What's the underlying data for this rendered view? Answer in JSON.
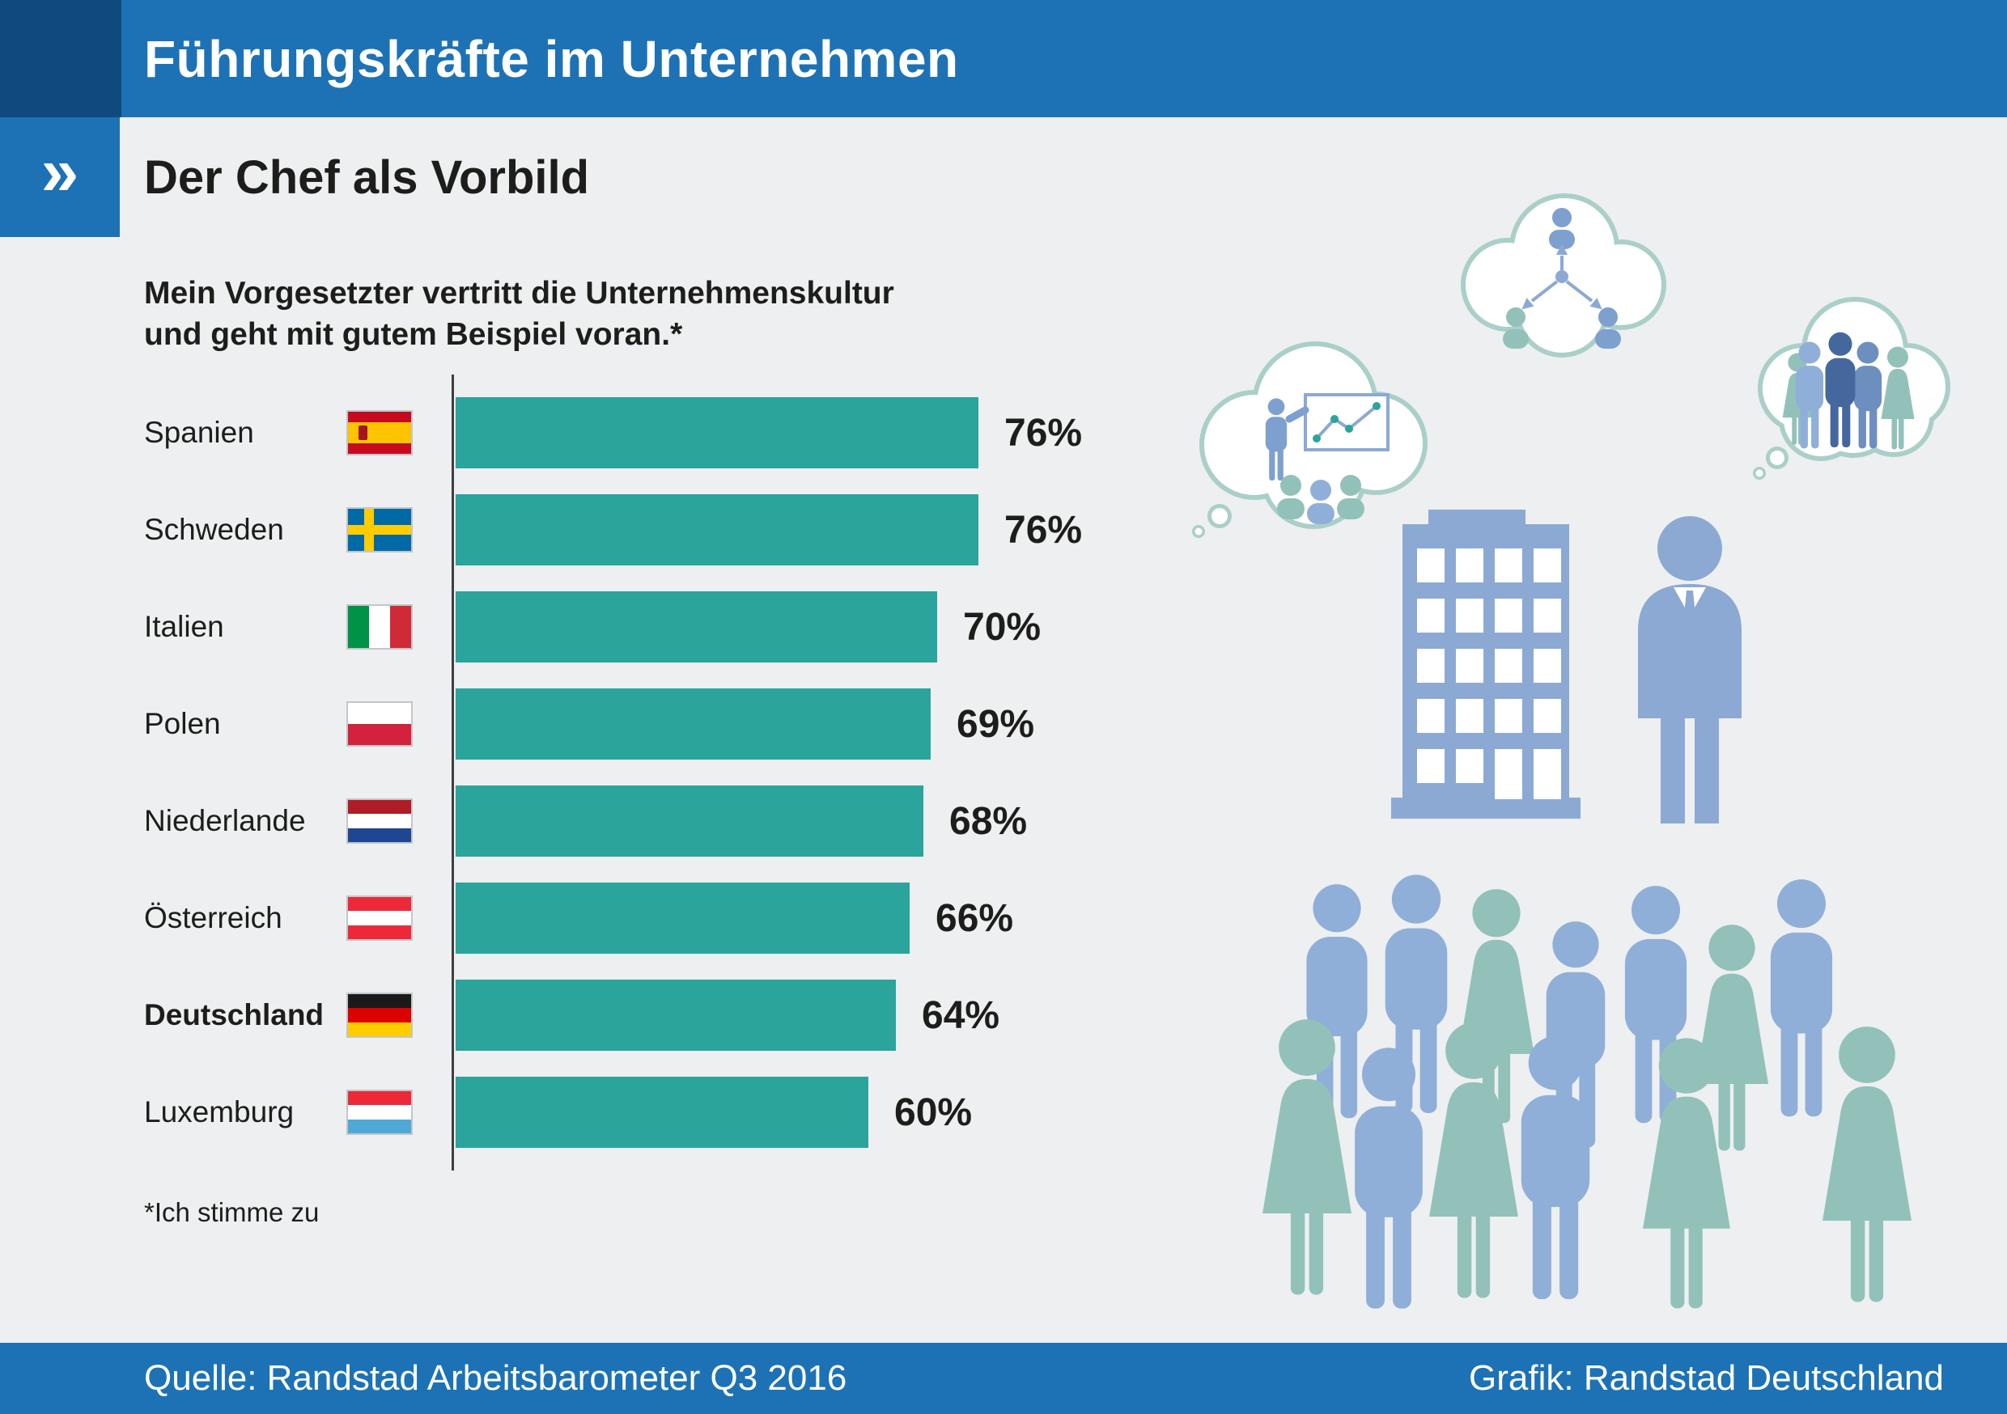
{
  "header": {
    "title": "Führungskräfte im Unternehmen",
    "chevron": "»",
    "subtitle": "Der Chef als Vorbild"
  },
  "chart_data": {
    "type": "bar",
    "title": "Mein Vorgesetzter vertritt die Unternehmenskultur und geht mit gutem Beispiel voran.*",
    "title_lines": [
      "Mein Vorgesetzter vertritt die Unternehmenskultur",
      "und geht mit gutem Beispiel voran.*"
    ],
    "categories": [
      "Spanien",
      "Schweden",
      "Italien",
      "Polen",
      "Niederlande",
      "Österreich",
      "Deutschland",
      "Luxemburg"
    ],
    "values": [
      76,
      76,
      70,
      69,
      68,
      66,
      64,
      60
    ],
    "unit": "%",
    "xlim": [
      0,
      100
    ],
    "bar_color": "#2BA49C",
    "legend": "none",
    "grid": false,
    "highlighted_category": "Deutschland",
    "footnote": "*Ich stimme zu",
    "rows": [
      {
        "country": "Spanien",
        "value": 76,
        "label": "76%",
        "bold": false,
        "flag": {
          "kind": "stripes-h",
          "colors": [
            "#C60B1E",
            "#FFC400",
            "#C60B1E"
          ],
          "weights": [
            1,
            2,
            1
          ],
          "emblem": true
        }
      },
      {
        "country": "Schweden",
        "value": 76,
        "label": "76%",
        "bold": false,
        "flag": {
          "kind": "nordic-cross",
          "field": "#006AA7",
          "cross": "#FECC00"
        }
      },
      {
        "country": "Italien",
        "value": 70,
        "label": "70%",
        "bold": false,
        "flag": {
          "kind": "stripes-v",
          "colors": [
            "#009246",
            "#FFFFFF",
            "#CE2B37"
          ],
          "weights": [
            1,
            1,
            1
          ]
        }
      },
      {
        "country": "Polen",
        "value": 69,
        "label": "69%",
        "bold": false,
        "flag": {
          "kind": "stripes-h",
          "colors": [
            "#FFFFFF",
            "#D4213D"
          ],
          "weights": [
            1,
            1
          ]
        }
      },
      {
        "country": "Niederlande",
        "value": 68,
        "label": "68%",
        "bold": false,
        "flag": {
          "kind": "stripes-h",
          "colors": [
            "#AE1C28",
            "#FFFFFF",
            "#1F4690"
          ],
          "weights": [
            1,
            1,
            1
          ]
        }
      },
      {
        "country": "Österreich",
        "value": 66,
        "label": "66%",
        "bold": false,
        "flag": {
          "kind": "stripes-h",
          "colors": [
            "#ED2939",
            "#FFFFFF",
            "#ED2939"
          ],
          "weights": [
            1,
            1,
            1
          ]
        }
      },
      {
        "country": "Deutschland",
        "value": 64,
        "label": "64%",
        "bold": true,
        "flag": {
          "kind": "stripes-h",
          "colors": [
            "#1A1A1A",
            "#DD0000",
            "#FFCC00"
          ],
          "weights": [
            1,
            1,
            1
          ]
        }
      },
      {
        "country": "Luxemburg",
        "value": 60,
        "label": "60%",
        "bold": false,
        "flag": {
          "kind": "stripes-h",
          "colors": [
            "#ED2939",
            "#FFFFFF",
            "#4FA8D5"
          ],
          "weights": [
            1,
            1,
            1
          ]
        }
      }
    ]
  },
  "footer": {
    "source": "Quelle: Randstad Arbeitsbarometer Q3 2016",
    "credit": "Grafik: Randstad Deutschland"
  },
  "colors": {
    "header_bg": "#1D72B5",
    "corner_bg": "#10497E",
    "page_bg": "#EDEFF1",
    "bar": "#2BA49C",
    "figure_blue": "#8FAFD8",
    "figure_teal": "#92C1BA",
    "cloud_outline": "#AACFC9"
  },
  "illustrations": [
    "thought-cloud-presentation",
    "thought-cloud-delegation",
    "thought-cloud-team",
    "office-building",
    "manager-figure",
    "employee-crowd"
  ]
}
